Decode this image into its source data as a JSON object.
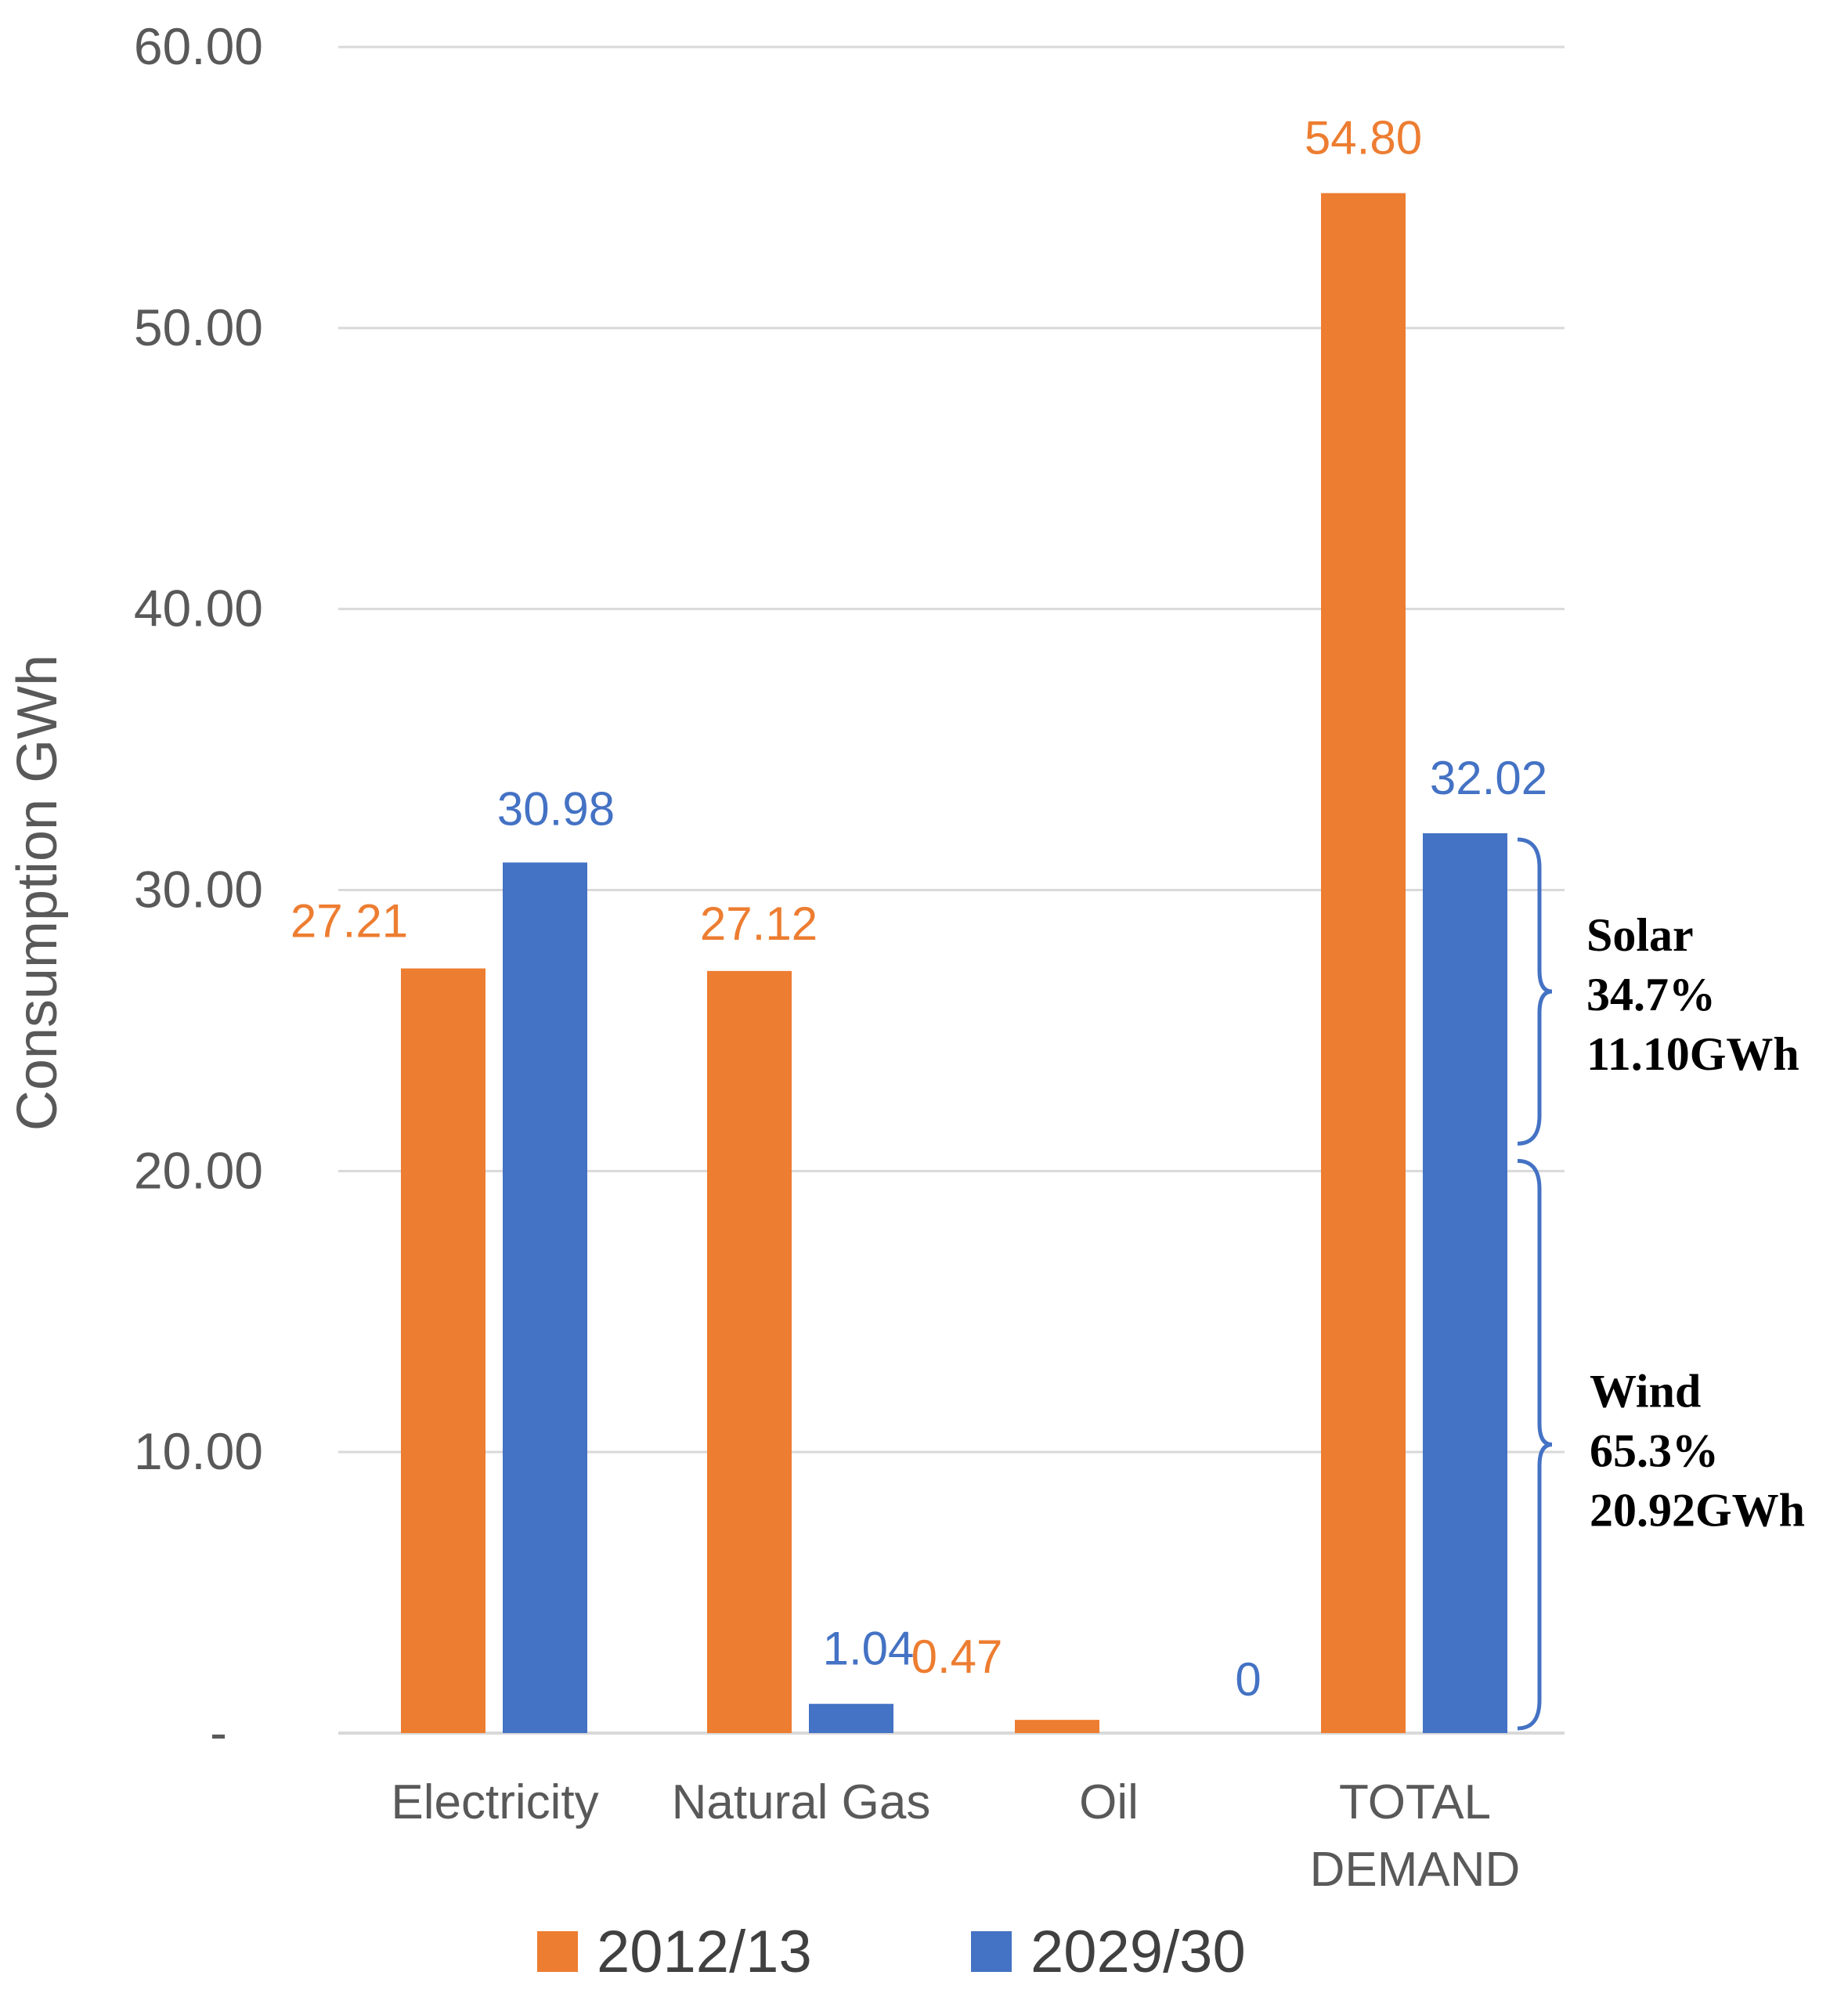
{
  "chart_data": {
    "type": "bar",
    "title": "",
    "xlabel": "",
    "ylabel": "Consumption GWh",
    "ylim": [
      0,
      60
    ],
    "yticks": [
      0,
      10,
      20,
      30,
      40,
      50,
      60
    ],
    "ytick_labels": [
      "-",
      "10.00",
      "20.00",
      "30.00",
      "40.00",
      "50.00",
      "60.00"
    ],
    "grid": true,
    "categories": [
      "Electricity",
      "Natural Gas",
      "Oil",
      "TOTAL DEMAND"
    ],
    "category_lines": [
      [
        "Electricity"
      ],
      [
        "Natural Gas"
      ],
      [
        "Oil"
      ],
      [
        "TOTAL",
        "DEMAND"
      ]
    ],
    "series": [
      {
        "name": "2012/13",
        "color": "#ED7D31",
        "values": [
          27.21,
          27.12,
          0.47,
          54.8
        ],
        "labels": [
          "27.21",
          "27.12",
          "0.47",
          "54.80"
        ]
      },
      {
        "name": "2029/30",
        "color": "#4472C4",
        "values": [
          30.98,
          1.04,
          0,
          32.02
        ],
        "labels": [
          "30.98",
          "1.04",
          "0",
          "32.02"
        ]
      }
    ],
    "legend_position": "bottom",
    "annotations": [
      {
        "name": "solar",
        "lines": [
          "Solar",
          "34.7%",
          "11.10GWh"
        ],
        "range": [
          20.92,
          32.02
        ]
      },
      {
        "name": "wind",
        "lines": [
          "Wind",
          "65.3%",
          "20.92GWh"
        ],
        "range": [
          0,
          20.92
        ]
      }
    ],
    "colors": {
      "grid": "#D9D9D9",
      "axis_text": "#595959",
      "bracket": "#4472C4",
      "annotation_text": "#000000"
    }
  }
}
